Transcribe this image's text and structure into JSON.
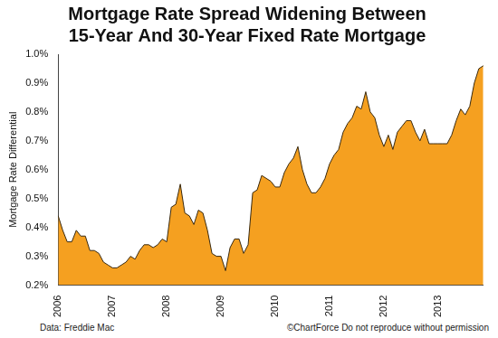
{
  "chart_data": {
    "type": "area",
    "title": [
      "Mortgage Rate Spread Widening Between",
      "15-Year And 30-Year Fixed Rate Mortgage"
    ],
    "y_label": "Mortgage Rate Differential",
    "annotations": [
      "Data: Freddie Mac",
      "©ChartForce  Do not reproduce without permission"
    ],
    "categories": [
      "2006",
      null,
      null,
      null,
      null,
      null,
      null,
      null,
      null,
      null,
      null,
      null,
      "2007",
      null,
      null,
      null,
      null,
      null,
      null,
      null,
      null,
      null,
      null,
      null,
      "2008",
      null,
      null,
      null,
      null,
      null,
      null,
      null,
      null,
      null,
      null,
      null,
      "2009",
      null,
      null,
      null,
      null,
      null,
      null,
      null,
      null,
      null,
      null,
      null,
      "2010",
      null,
      null,
      null,
      null,
      null,
      null,
      null,
      null,
      null,
      null,
      null,
      "2011",
      null,
      null,
      null,
      null,
      null,
      null,
      null,
      null,
      null,
      null,
      null,
      "2012",
      null,
      null,
      null,
      null,
      null,
      null,
      null,
      null,
      null,
      null,
      null,
      "2013",
      null,
      null,
      null,
      null,
      null,
      null,
      null,
      null,
      null,
      null
    ],
    "values": [
      0.44,
      0.39,
      0.35,
      0.35,
      0.39,
      0.37,
      0.37,
      0.32,
      0.32,
      0.31,
      0.28,
      0.27,
      0.26,
      0.26,
      0.27,
      0.28,
      0.3,
      0.29,
      0.32,
      0.34,
      0.34,
      0.33,
      0.34,
      0.36,
      0.35,
      0.47,
      0.48,
      0.55,
      0.45,
      0.44,
      0.41,
      0.46,
      0.45,
      0.39,
      0.31,
      0.3,
      0.3,
      0.25,
      0.33,
      0.36,
      0.36,
      0.31,
      0.34,
      0.52,
      0.53,
      0.58,
      0.57,
      0.56,
      0.54,
      0.54,
      0.59,
      0.62,
      0.64,
      0.68,
      0.6,
      0.55,
      0.52,
      0.52,
      0.54,
      0.57,
      0.62,
      0.65,
      0.67,
      0.73,
      0.76,
      0.78,
      0.82,
      0.81,
      0.87,
      0.8,
      0.78,
      0.72,
      0.68,
      0.72,
      0.67,
      0.73,
      0.75,
      0.77,
      0.77,
      0.73,
      0.7,
      0.74,
      0.69,
      0.69,
      0.69,
      0.69,
      0.69,
      0.72,
      0.77,
      0.81,
      0.79,
      0.82,
      0.9,
      0.95,
      0.96
    ],
    "color": "#f5a020",
    "ylim": [
      0.2,
      1.0
    ],
    "yticks": [
      {
        "value": 0.2,
        "label": "0.2%"
      },
      {
        "value": 0.3,
        "label": "0.3%"
      },
      {
        "value": 0.4,
        "label": "0.4%"
      },
      {
        "value": 0.5,
        "label": "0.5%"
      },
      {
        "value": 0.6,
        "label": "0.6%"
      },
      {
        "value": 0.7,
        "label": "0.7%"
      },
      {
        "value": 0.8,
        "label": "0.8%"
      },
      {
        "value": 0.9,
        "label": "0.9%"
      },
      {
        "value": 1.0,
        "label": "1.0%"
      }
    ],
    "grid": false
  }
}
